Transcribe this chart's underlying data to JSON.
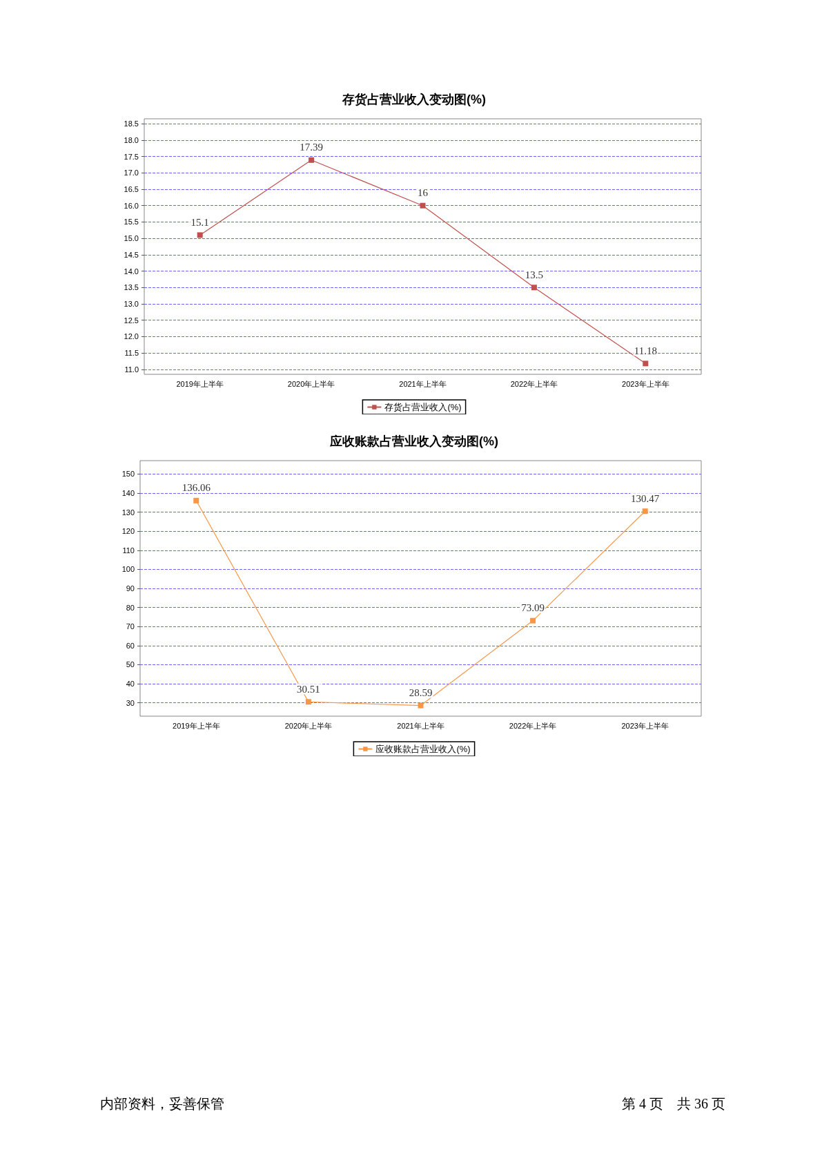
{
  "chart_data": [
    {
      "type": "line",
      "title": "存货占营业收入变动图(%)",
      "categories": [
        "2019年上半年",
        "2020年上半年",
        "2021年上半年",
        "2022年上半年",
        "2023年上半年"
      ],
      "series": [
        {
          "name": "存货占营业收入(%)",
          "color": "#c0504d",
          "values": [
            15.1,
            17.39,
            16,
            13.5,
            11.18
          ]
        }
      ],
      "ylim": [
        10.85,
        18.65
      ],
      "yticks": [
        {
          "value": 11,
          "label": "11.0"
        },
        11.5,
        {
          "value": 12,
          "label": "12.0"
        },
        12.5,
        {
          "value": 13,
          "label": "13.0"
        },
        13.5,
        {
          "value": 14,
          "label": "14.0"
        },
        14.5,
        {
          "value": 15,
          "label": "15.0"
        },
        15.5,
        {
          "value": 16,
          "label": "16.0"
        },
        16.5,
        {
          "value": 17,
          "label": "17.0"
        },
        17.5,
        {
          "value": 18,
          "label": "18.0"
        },
        18.5
      ],
      "grid": "y",
      "legend": "bottom",
      "marker": "square",
      "line_style": "solid",
      "data_labels": true
    },
    {
      "type": "line",
      "title": "应收账款占营业收入变动图(%)",
      "categories": [
        "2019年上半年",
        "2020年上半年",
        "2021年上半年",
        "2022年上半年",
        "2023年上半年"
      ],
      "series": [
        {
          "name": "应收账款占营业收入(%)",
          "color": "#f79646",
          "values": [
            136.06,
            30.51,
            28.59,
            73.09,
            130.47
          ]
        }
      ],
      "ylim": [
        23,
        157
      ],
      "yticks": [
        30,
        40,
        50,
        60,
        70,
        80,
        90,
        100,
        110,
        120,
        130,
        140,
        150
      ],
      "grid": "y",
      "legend": "bottom",
      "marker": "square",
      "line_style": "solid",
      "data_labels": true,
      "annotations": [
        "内部资料，妥善保管",
        "第 4 页　共 36 页"
      ]
    }
  ]
}
